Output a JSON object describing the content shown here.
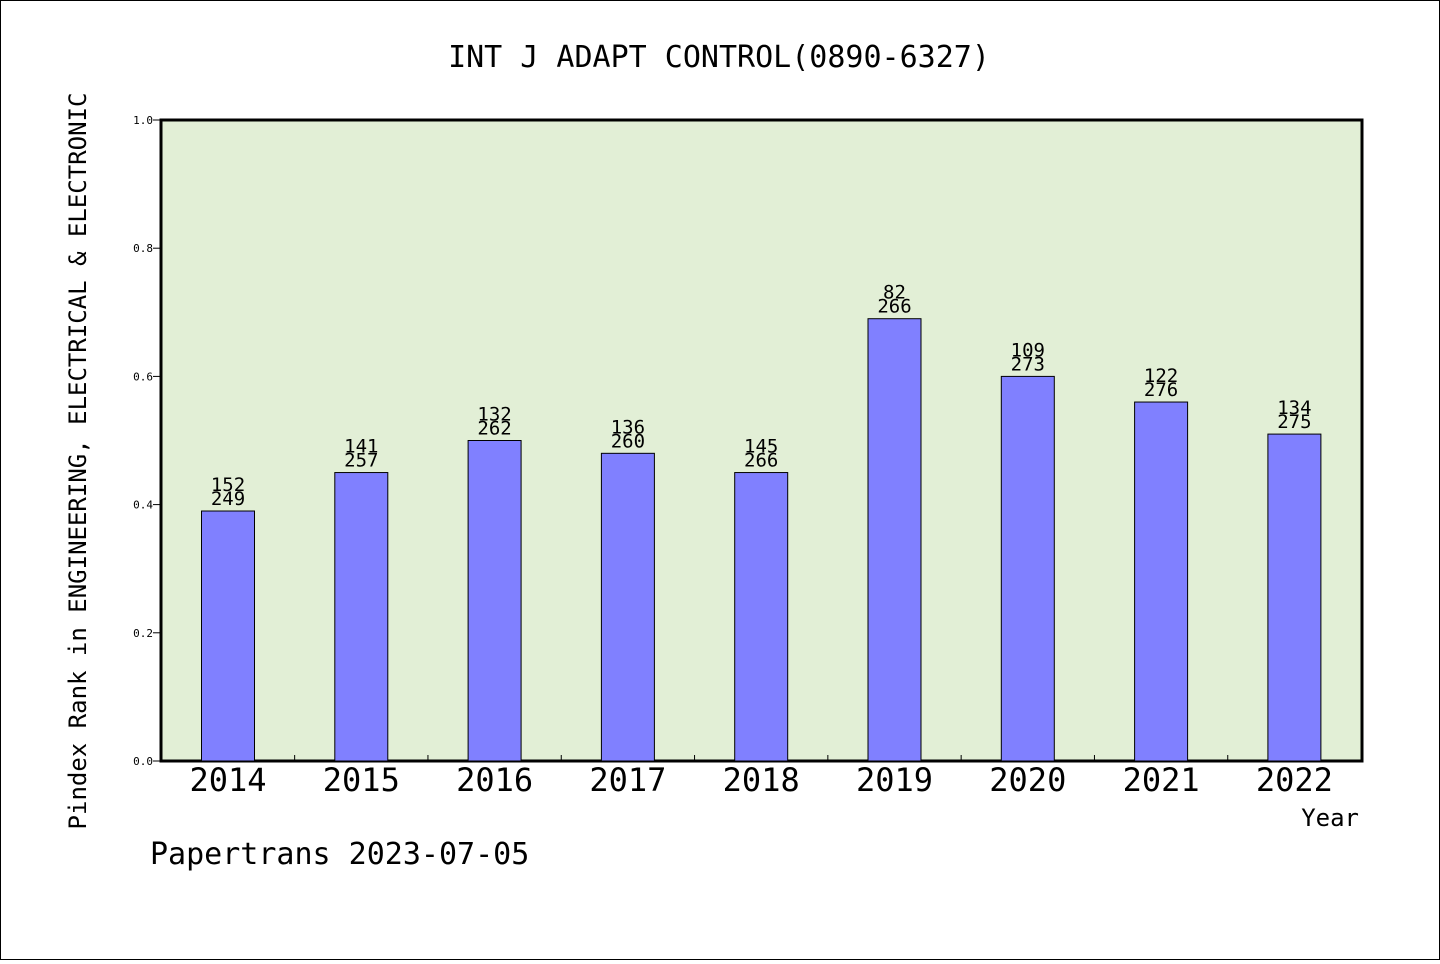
{
  "chart_data": {
    "type": "bar",
    "title": "INT J ADAPT CONTROL(0890-6327)",
    "xlabel": "Year",
    "ylabel": "Pindex Rank in ENGINEERING, ELECTRICAL & ELECTRONIC",
    "ylim": [
      0.0,
      1.0
    ],
    "yticks": [
      "0.0",
      "0.2",
      "0.4",
      "0.6",
      "0.8",
      "1.0"
    ],
    "ytick_values": [
      0.0,
      0.2,
      0.4,
      0.6,
      0.8,
      1.0
    ],
    "categories": [
      "2014",
      "2015",
      "2016",
      "2017",
      "2018",
      "2019",
      "2020",
      "2021",
      "2022"
    ],
    "values": [
      0.39,
      0.45,
      0.5,
      0.48,
      0.45,
      0.69,
      0.6,
      0.56,
      0.51
    ],
    "rank_labels": [
      "152",
      "141",
      "132",
      "136",
      "145",
      "82",
      "109",
      "122",
      "134"
    ],
    "total_labels": [
      "249",
      "257",
      "262",
      "260",
      "266",
      "266",
      "273",
      "276",
      "275"
    ],
    "grid": false,
    "colors": {
      "plot_background": "#e2efd6",
      "bar_fill": "#8080ff",
      "bar_stroke": "#000000"
    }
  },
  "footer": "Papertrans 2023-07-05"
}
